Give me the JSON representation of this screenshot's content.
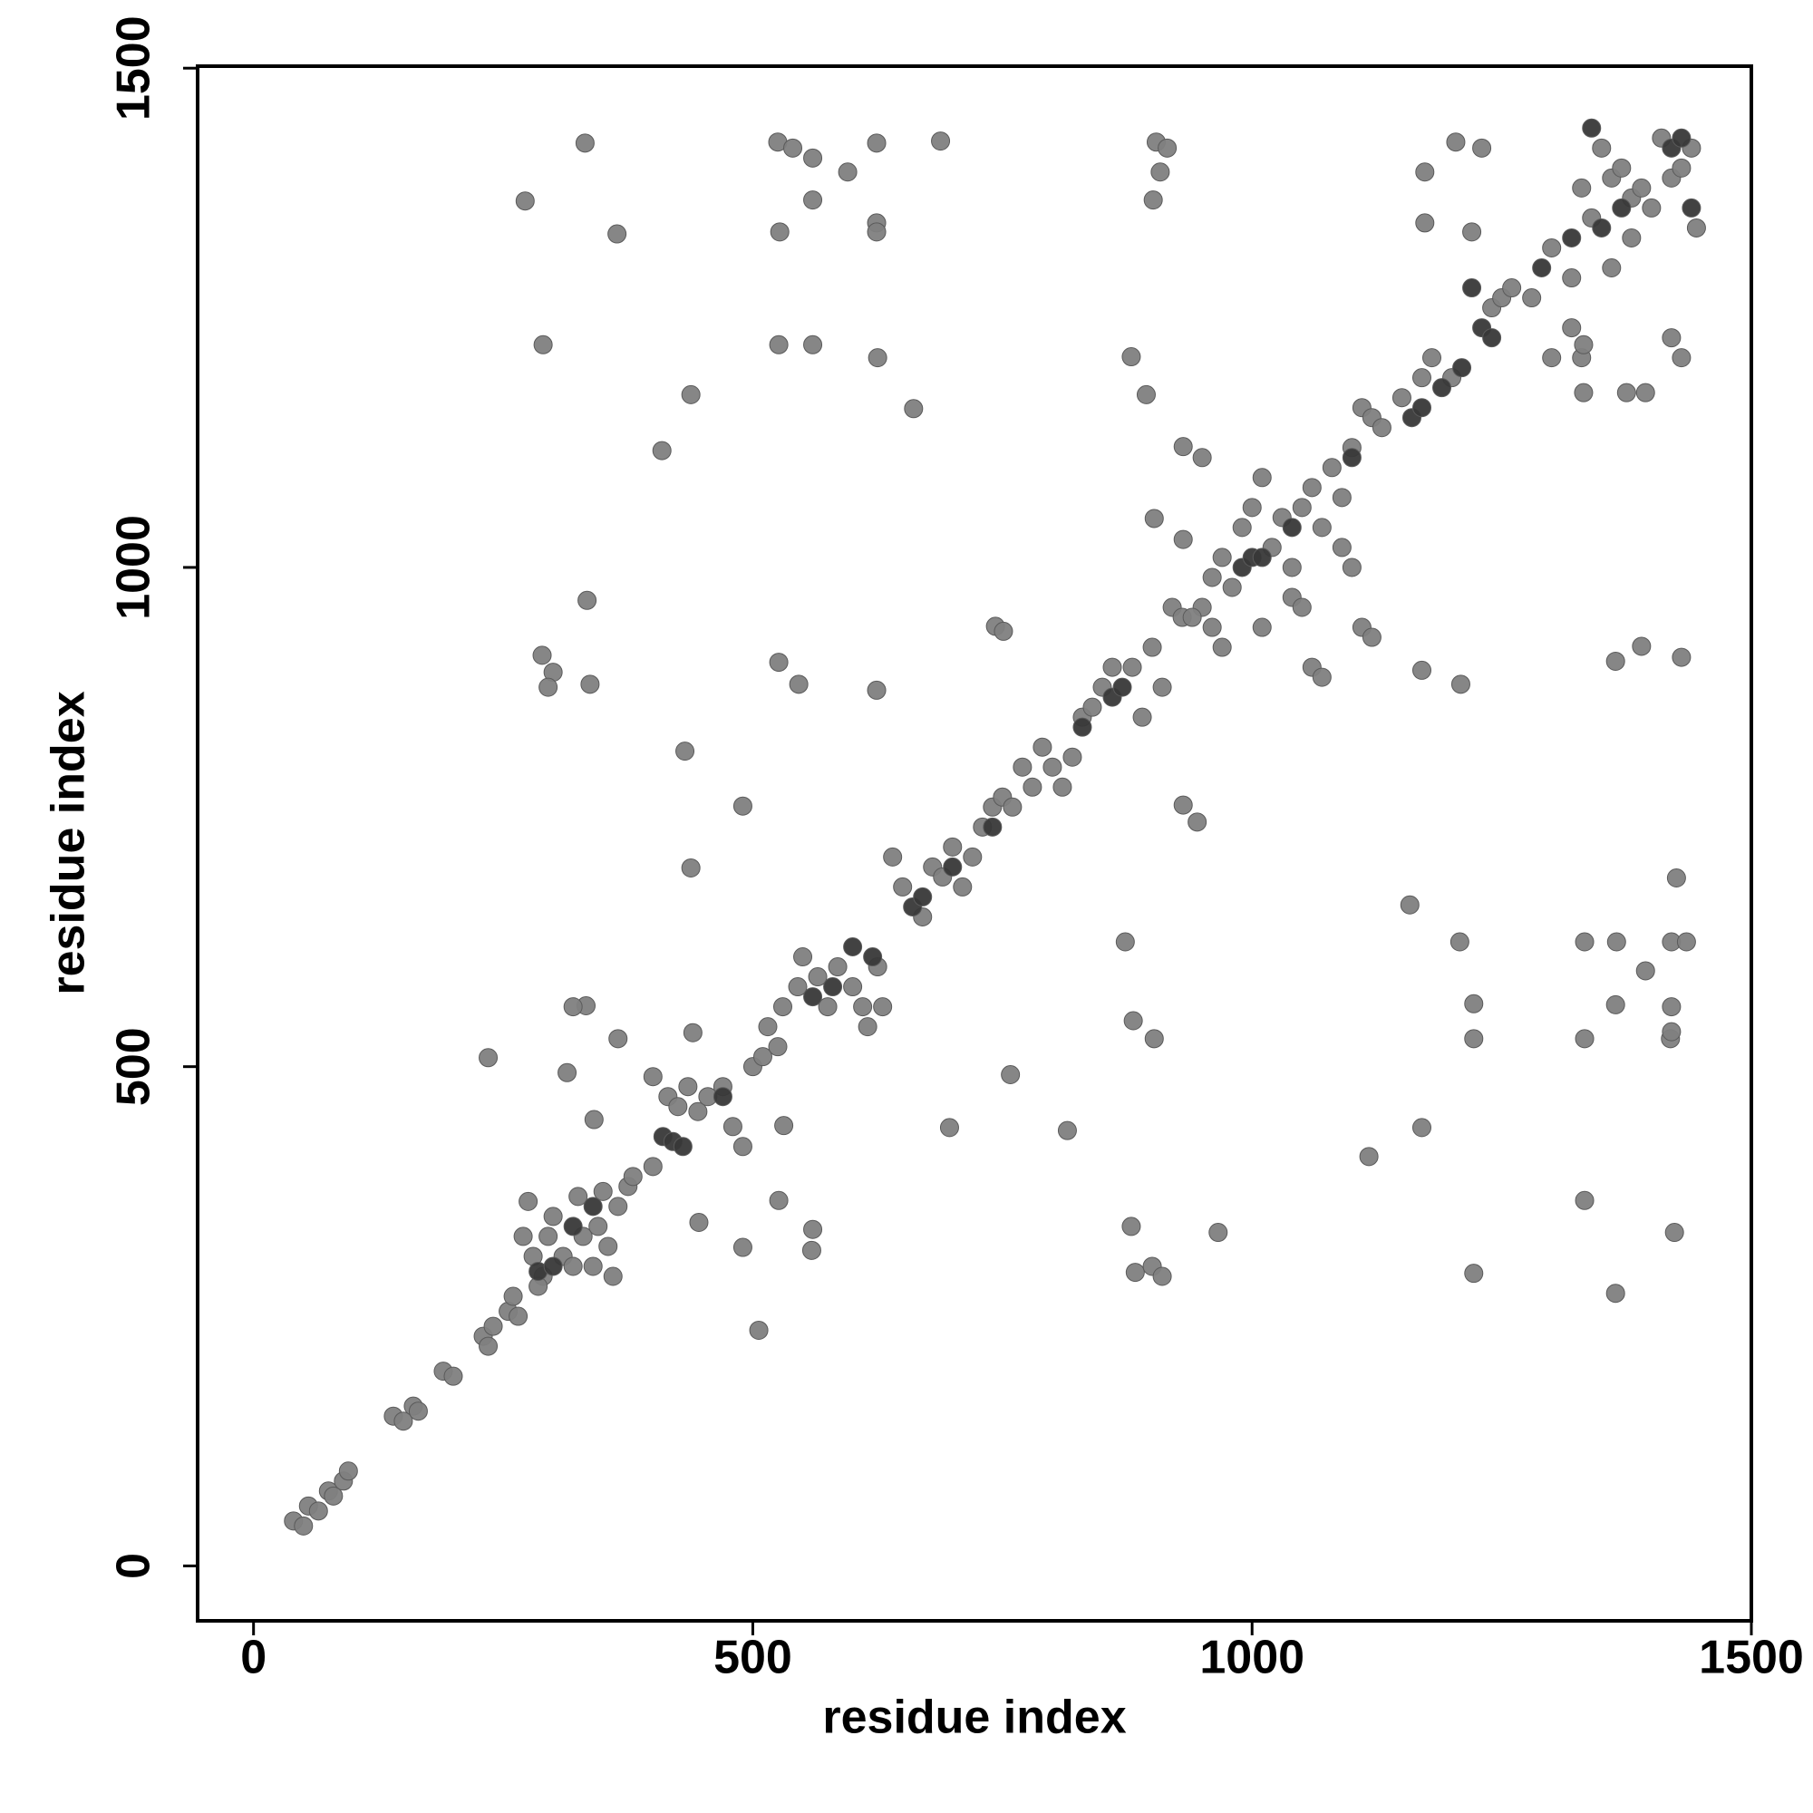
{
  "chart_data": {
    "type": "scatter",
    "xlabel": "residue index",
    "ylabel": "residue index",
    "xlim": [
      -56,
      1500
    ],
    "ylim": [
      -55,
      1502
    ],
    "xticks": [
      0,
      500,
      1000,
      1500
    ],
    "yticks": [
      0,
      500,
      1000,
      1500
    ],
    "series": [
      {
        "color": "#808080",
        "x": [
          40,
          50,
          55,
          65,
          75,
          80,
          90,
          95,
          140,
          150,
          160,
          165,
          190,
          200,
          230,
          235,
          240,
          255,
          260,
          265,
          270,
          280,
          290,
          295,
          300,
          310,
          320,
          325,
          330,
          340,
          345,
          355,
          360,
          365,
          375,
          350,
          275,
          285,
          380,
          400,
          400,
          415,
          425,
          435,
          445,
          455,
          470,
          480,
          490,
          500,
          510,
          515,
          525,
          530,
          545,
          550,
          565,
          575,
          585,
          600,
          610,
          615,
          625,
          630,
          640,
          650,
          670,
          680,
          690,
          700,
          710,
          720,
          730,
          740,
          750,
          760,
          770,
          780,
          790,
          800,
          810,
          820,
          830,
          840,
          850,
          860,
          880,
          890,
          900,
          910,
          920,
          930,
          950,
          960,
          970,
          980,
          990,
          1000,
          1010,
          1020,
          1030,
          1040,
          1050,
          1060,
          1070,
          1080,
          1090,
          1100,
          1110,
          1120,
          1130,
          1150,
          1170,
          1180,
          1200,
          1240,
          1250,
          1260,
          1280,
          1300,
          1320,
          1330,
          1340,
          1350,
          1360,
          1370,
          1380,
          1390,
          1400,
          1410,
          1420,
          1430,
          1440,
          1445,
          1360,
          1380,
          1320,
          1330,
          1300,
          1110,
          1120,
          1040,
          1050,
          1060,
          1070,
          960,
          970,
          1100,
          1090,
          1010,
          940,
          332,
          272,
          364,
          290,
          438,
          409,
          334,
          289,
          300,
          295,
          337,
          432,
          490,
          438,
          235,
          333,
          320,
          314,
          341,
          365,
          446,
          490,
          526,
          560,
          559,
          506,
          531,
          440,
          525,
          540,
          560,
          595,
          624,
          527,
          560,
          624,
          624,
          526,
          560,
          625,
          661,
          688,
          526,
          546,
          624,
          697,
          758,
          815,
          743,
          751,
          904,
          915,
          908,
          901,
          879,
          894,
          931,
          950,
          902,
          931,
          873,
          881,
          902,
          931,
          945,
          879,
          883,
          900,
          910,
          966,
          1117,
          1158,
          1170,
          1208,
          1222,
          1222,
          1222,
          1170,
          1209,
          1204,
          1230,
          1173,
          1173,
          1220,
          1332,
          1332,
          1375,
          1394,
          1420,
          1430,
          1390,
          1430,
          1364,
          1425,
          1420,
          1435,
          1333,
          1365,
          1394,
          1364,
          1420,
          1419,
          1420,
          1333,
          1333,
          1423,
          1364
        ],
        "values": [
          45,
          40,
          60,
          55,
          75,
          70,
          85,
          95,
          150,
          145,
          160,
          155,
          195,
          190,
          230,
          220,
          240,
          255,
          270,
          250,
          330,
          310,
          290,
          330,
          350,
          310,
          300,
          370,
          330,
          300,
          340,
          320,
          290,
          360,
          380,
          375,
          365,
          280,
          390,
          400,
          490,
          470,
          460,
          480,
          455,
          470,
          480,
          440,
          420,
          500,
          510,
          540,
          520,
          560,
          580,
          610,
          590,
          560,
          600,
          580,
          560,
          540,
          600,
          560,
          710,
          680,
          650,
          700,
          690,
          720,
          680,
          710,
          740,
          760,
          770,
          760,
          800,
          780,
          820,
          800,
          780,
          810,
          850,
          860,
          880,
          900,
          900,
          850,
          920,
          880,
          960,
          950,
          960,
          990,
          1010,
          980,
          1040,
          1060,
          1090,
          1020,
          1050,
          1000,
          1060,
          1080,
          1040,
          1100,
          1070,
          1120,
          1160,
          1150,
          1140,
          1170,
          1190,
          1210,
          1190,
          1260,
          1270,
          1280,
          1270,
          1320,
          1290,
          1380,
          1350,
          1420,
          1390,
          1400,
          1370,
          1380,
          1360,
          1430,
          1390,
          1400,
          1420,
          1340,
          1300,
          1330,
          1240,
          1210,
          1210,
          940,
          930,
          970,
          960,
          900,
          890,
          940,
          920,
          1000,
          1020,
          940,
          950,
          1425,
          1367,
          1334,
          1223,
          1173,
          1117,
          967,
          912,
          895,
          880,
          883,
          816,
          761,
          699,
          509,
          561,
          560,
          494,
          447,
          528,
          344,
          319,
          366,
          337,
          316,
          236,
          441,
          534,
          1426,
          1420,
          1410,
          1396,
          1425,
          1336,
          1368,
          1345,
          1336,
          1223,
          1223,
          1210,
          1159,
          1427,
          905,
          883,
          877,
          439,
          492,
          436,
          941,
          936,
          1426,
          1420,
          1396,
          1368,
          1211,
          1173,
          1121,
          1110,
          1049,
          1028,
          625,
          546,
          528,
          762,
          745,
          340,
          294,
          300,
          290,
          334,
          410,
          662,
          439,
          625,
          563,
          528,
          293,
          897,
          883,
          1426,
          1420,
          1396,
          1345,
          1336,
          1223,
          1175,
          1175,
          1175,
          1230,
          1210,
          921,
          910,
          906,
          689,
          625,
          625,
          625,
          625,
          596,
          562,
          560,
          528,
          535,
          528,
          366,
          334,
          273
        ]
      },
      {
        "color": "#383838",
        "x": [
          285,
          300,
          320,
          340,
          410,
          420,
          430,
          470,
          560,
          580,
          600,
          620,
          660,
          670,
          700,
          740,
          830,
          860,
          870,
          990,
          1000,
          1010,
          1040,
          1100,
          1160,
          1170,
          1190,
          1210,
          1220,
          1230,
          1240,
          1290,
          1320,
          1340,
          1350,
          1370,
          1420,
          1430,
          1440
        ],
        "values": [
          295,
          300,
          340,
          360,
          430,
          425,
          420,
          470,
          570,
          580,
          620,
          610,
          660,
          670,
          700,
          740,
          840,
          870,
          880,
          1000,
          1010,
          1010,
          1040,
          1110,
          1150,
          1160,
          1180,
          1200,
          1280,
          1240,
          1230,
          1300,
          1330,
          1440,
          1340,
          1360,
          1420,
          1430,
          1360
        ]
      }
    ]
  }
}
